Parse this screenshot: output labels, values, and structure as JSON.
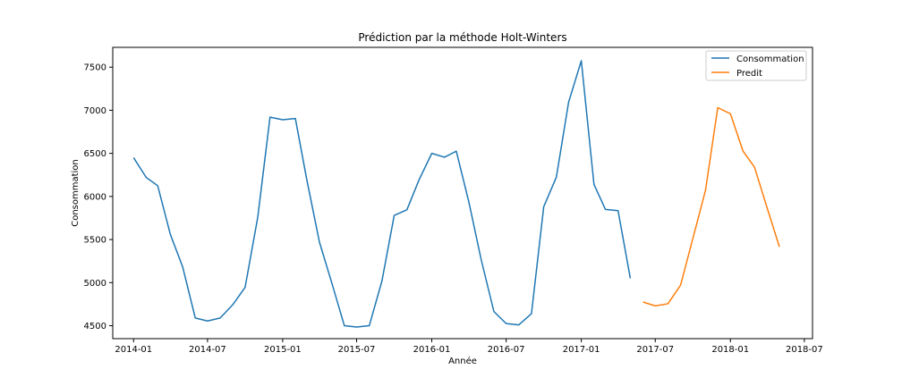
{
  "chart_data": {
    "type": "line",
    "title": "Prédiction par la méthode Holt-Winters",
    "xlabel": "Année",
    "ylabel": "Consommation",
    "xlim": [
      "2013-11-11",
      "2018-07-21"
    ],
    "ylim": [
      4350,
      7730
    ],
    "x_ticks": [
      "2014-01",
      "2014-07",
      "2015-01",
      "2015-07",
      "2016-01",
      "2016-07",
      "2017-01",
      "2017-07",
      "2018-01",
      "2018-07"
    ],
    "y_ticks": [
      4500,
      5000,
      5500,
      6000,
      6500,
      7000,
      7500
    ],
    "grid": false,
    "legend_position": "top-right",
    "series": [
      {
        "name": "Consommation",
        "color": "#1f77b4",
        "x": [
          "2014-01",
          "2014-02",
          "2014-03",
          "2014-04",
          "2014-05",
          "2014-06",
          "2014-07",
          "2014-08",
          "2014-09",
          "2014-10",
          "2014-11",
          "2014-12",
          "2015-01",
          "2015-02",
          "2015-03",
          "2015-04",
          "2015-05",
          "2015-06",
          "2015-07",
          "2015-08",
          "2015-09",
          "2015-10",
          "2015-11",
          "2015-12",
          "2016-01",
          "2016-02",
          "2016-03",
          "2016-04",
          "2016-05",
          "2016-06",
          "2016-07",
          "2016-08",
          "2016-09",
          "2016-10",
          "2016-11",
          "2016-12",
          "2017-01",
          "2017-02",
          "2017-03",
          "2017-04",
          "2017-05"
        ],
        "y": [
          6450,
          6220,
          6125,
          5560,
          5185,
          4590,
          4555,
          4590,
          4745,
          4945,
          5760,
          6920,
          6890,
          6905,
          6195,
          5470,
          5000,
          4500,
          4485,
          4500,
          5020,
          5780,
          5845,
          6195,
          6500,
          6455,
          6525,
          5930,
          5265,
          4665,
          4525,
          4510,
          4640,
          5880,
          6225,
          7095,
          7575,
          6140,
          5850,
          5835,
          5050
        ]
      },
      {
        "name": "Predit",
        "color": "#ff7f0e",
        "x": [
          "2017-06",
          "2017-07",
          "2017-08",
          "2017-09",
          "2017-10",
          "2017-11",
          "2017-12",
          "2018-01",
          "2018-02",
          "2018-03",
          "2018-04",
          "2018-05"
        ],
        "y": [
          4775,
          4730,
          4755,
          4970,
          5510,
          6070,
          7030,
          6960,
          6525,
          6340,
          5865,
          5415
        ]
      }
    ]
  }
}
